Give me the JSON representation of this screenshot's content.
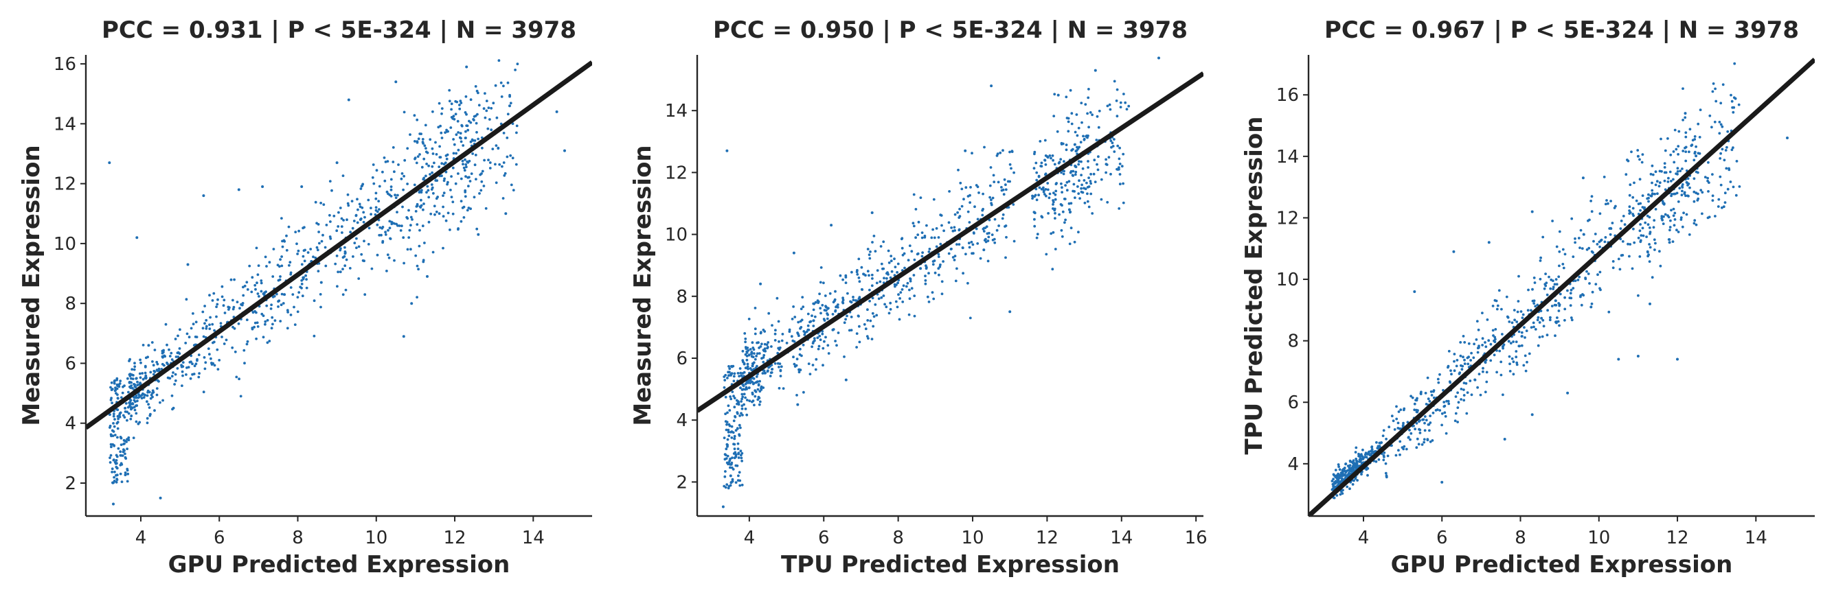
{
  "chart_data": [
    {
      "type": "scatter",
      "title": "PCC =  0.931 | P <  5E-324 | N = 3978",
      "xlabel": "GPU Predicted Expression",
      "ylabel": "Measured Expression",
      "xlim": [
        2.6,
        15.5
      ],
      "ylim": [
        0.9,
        16.3
      ],
      "xticks": [
        4,
        6,
        8,
        10,
        12,
        14
      ],
      "yticks": [
        2,
        4,
        6,
        8,
        10,
        12,
        14,
        16
      ],
      "point_color": "#1f6fb4",
      "line_color": "#1a1a1a",
      "fit_line": {
        "x": [
          2.6,
          15.5
        ],
        "y": [
          3.85,
          16.05
        ]
      },
      "grid": false,
      "series": [
        {
          "values": [
            {
              "x": 3.2,
              "y": 12.7
            },
            {
              "x": 3.3,
              "y": 1.3
            },
            {
              "x": 3.4,
              "y": 2.5
            },
            {
              "x": 3.5,
              "y": 3.5
            },
            {
              "x": 3.6,
              "y": 4.5
            },
            {
              "x": 3.9,
              "y": 10.2
            },
            {
              "x": 4.5,
              "y": 1.5
            },
            {
              "x": 4.2,
              "y": 6.6
            },
            {
              "x": 5.2,
              "y": 9.3
            },
            {
              "x": 5.6,
              "y": 11.6
            },
            {
              "x": 6.5,
              "y": 11.8
            },
            {
              "x": 7.1,
              "y": 11.9
            },
            {
              "x": 8.1,
              "y": 11.9
            },
            {
              "x": 9.0,
              "y": 12.7
            },
            {
              "x": 9.3,
              "y": 14.8
            },
            {
              "x": 10.5,
              "y": 15.4
            },
            {
              "x": 12.3,
              "y": 15.9
            },
            {
              "x": 13.4,
              "y": 14.6
            },
            {
              "x": 14.6,
              "y": 14.4
            },
            {
              "x": 14.8,
              "y": 13.1
            },
            {
              "x": 10.7,
              "y": 6.9
            },
            {
              "x": 10.9,
              "y": 8.0
            },
            {
              "x": 11.3,
              "y": 8.9
            },
            {
              "x": 12.6,
              "y": 10.3
            },
            {
              "x": 13.3,
              "y": 11.0
            },
            {
              "x": 8.6,
              "y": 8.7
            },
            {
              "x": 9.6,
              "y": 10.8
            },
            {
              "x": 11.5,
              "y": 12.2
            }
          ]
        }
      ]
    },
    {
      "type": "scatter",
      "title": "PCC =  0.950 | P <  5E-324 | N = 3978",
      "xlabel": "TPU Predicted Expression",
      "ylabel": "Measured Expression",
      "xlim": [
        2.6,
        16.2
      ],
      "ylim": [
        0.9,
        15.8
      ],
      "xticks": [
        4,
        6,
        8,
        10,
        12,
        14,
        16
      ],
      "yticks": [
        2,
        4,
        6,
        8,
        10,
        12,
        14
      ],
      "point_color": "#1f6fb4",
      "line_color": "#1a1a1a",
      "fit_line": {
        "x": [
          2.6,
          16.2
        ],
        "y": [
          4.3,
          15.2
        ]
      },
      "grid": false,
      "series": [
        {
          "values": [
            {
              "x": 3.4,
              "y": 12.7
            },
            {
              "x": 3.3,
              "y": 1.2
            },
            {
              "x": 3.5,
              "y": 2.2
            },
            {
              "x": 3.6,
              "y": 3.4
            },
            {
              "x": 3.7,
              "y": 4.6
            },
            {
              "x": 4.3,
              "y": 8.4
            },
            {
              "x": 5.2,
              "y": 9.4
            },
            {
              "x": 6.2,
              "y": 10.3
            },
            {
              "x": 7.3,
              "y": 10.7
            },
            {
              "x": 9.8,
              "y": 12.7
            },
            {
              "x": 10.5,
              "y": 14.8
            },
            {
              "x": 12.3,
              "y": 14.5
            },
            {
              "x": 13.3,
              "y": 15.3
            },
            {
              "x": 15.0,
              "y": 15.7
            },
            {
              "x": 15.3,
              "y": 14.5
            },
            {
              "x": 11.0,
              "y": 7.5
            },
            {
              "x": 10.3,
              "y": 9.5
            },
            {
              "x": 12.6,
              "y": 10.8
            },
            {
              "x": 6.6,
              "y": 5.3
            },
            {
              "x": 5.3,
              "y": 4.5
            },
            {
              "x": 8.6,
              "y": 8.9
            },
            {
              "x": 13.9,
              "y": 12.1
            }
          ]
        }
      ]
    },
    {
      "type": "scatter",
      "title": "PCC =  0.967 | P <  5E-324 | N = 3978",
      "xlabel": "GPU Predicted Expression",
      "ylabel": "TPU Predicted Expression",
      "xlim": [
        2.6,
        15.5
      ],
      "ylim": [
        2.3,
        17.3
      ],
      "xticks": [
        4,
        6,
        8,
        10,
        12,
        14
      ],
      "yticks": [
        4,
        6,
        8,
        10,
        12,
        14,
        16
      ],
      "point_color": "#1f6fb4",
      "line_color": "#1a1a1a",
      "fit_line": {
        "x": [
          2.6,
          15.5
        ],
        "y": [
          2.3,
          17.15
        ]
      },
      "grid": false,
      "series": [
        {
          "values": [
            {
              "x": 3.3,
              "y": 3.4
            },
            {
              "x": 3.8,
              "y": 4.0
            },
            {
              "x": 4.3,
              "y": 4.4
            },
            {
              "x": 5.3,
              "y": 9.6
            },
            {
              "x": 6.3,
              "y": 10.9
            },
            {
              "x": 7.2,
              "y": 11.2
            },
            {
              "x": 8.3,
              "y": 12.2
            },
            {
              "x": 9.6,
              "y": 13.3
            },
            {
              "x": 11.0,
              "y": 14.0
            },
            {
              "x": 12.2,
              "y": 15.4
            },
            {
              "x": 13.3,
              "y": 14.5
            },
            {
              "x": 14.8,
              "y": 14.6
            },
            {
              "x": 10.5,
              "y": 7.4
            },
            {
              "x": 11.0,
              "y": 7.5
            },
            {
              "x": 11.3,
              "y": 9.2
            },
            {
              "x": 12.0,
              "y": 7.4
            },
            {
              "x": 6.0,
              "y": 3.4
            },
            {
              "x": 7.6,
              "y": 4.8
            },
            {
              "x": 8.3,
              "y": 5.6
            },
            {
              "x": 9.2,
              "y": 6.3
            },
            {
              "x": 9.8,
              "y": 9.1
            },
            {
              "x": 11.8,
              "y": 11.2
            }
          ]
        }
      ]
    }
  ]
}
